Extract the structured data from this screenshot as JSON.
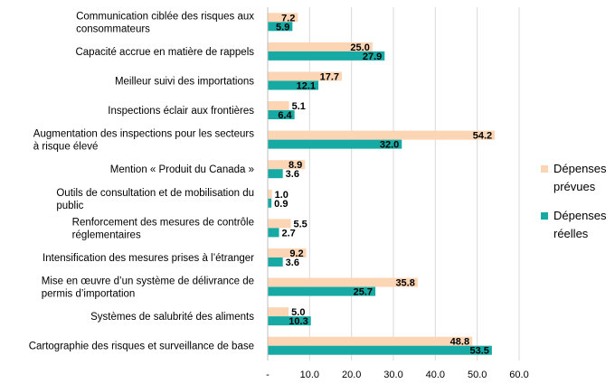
{
  "chart_data": {
    "type": "bar",
    "orientation": "horizontal",
    "title": "",
    "xlabel": "",
    "ylabel": "",
    "xlim": [
      0,
      60
    ],
    "ticks": [
      0,
      10,
      20,
      30,
      40,
      50,
      60
    ],
    "tick_labels": [
      "-",
      "10.0",
      "20.0",
      "30.0",
      "40.0",
      "50.0",
      "60.0"
    ],
    "grid": true,
    "legend_position": "right",
    "categories": [
      [
        "Communication ciblée des risques aux",
        "consommateurs"
      ],
      [
        "Capacité accrue en matière de rappels"
      ],
      [
        "Meilleur suivi des importations"
      ],
      [
        "Inspections éclair aux frontières"
      ],
      [
        "Augmentation des inspections pour les secteurs",
        "à risque élevé"
      ],
      [
        "Mention « Produit du Canada »"
      ],
      [
        "Outils de consultation et de mobilisation du",
        "public"
      ],
      [
        "Renforcement des mesures de contrôle",
        "réglementaires"
      ],
      [
        "Intensification des mesures prises à l’étranger"
      ],
      [
        "Mise en œuvre d’un système de délivrance de",
        "permis d’importation"
      ],
      [
        "Systèmes de salubrité des aliments"
      ],
      [
        "Cartographie des risques et surveillance de base"
      ]
    ],
    "series": [
      {
        "name": [
          "Dépenses",
          "prévues"
        ],
        "color": "#fcd5b5",
        "values": [
          7.2,
          25.0,
          17.7,
          5.1,
          54.2,
          8.9,
          1.0,
          5.5,
          9.2,
          35.8,
          5.0,
          48.8
        ],
        "labels": [
          "7.2",
          "25.0",
          "17.7",
          "5.1",
          "54.2",
          "8.9",
          "1.0",
          "5.5",
          "9.2",
          "35.8",
          "5.0",
          "48.8"
        ],
        "label_color": "#000000"
      },
      {
        "name": [
          "Dépenses",
          "réelles"
        ],
        "color": "#17aaa5",
        "values": [
          5.9,
          27.9,
          12.1,
          6.4,
          32.0,
          3.6,
          0.9,
          2.7,
          3.6,
          25.7,
          10.3,
          53.5
        ],
        "labels": [
          "5.9",
          "27.9",
          "12.1",
          "6.4",
          "32.0",
          "3.6",
          "0.9",
          "2.7",
          "3.6",
          "25.7",
          "10.3",
          "53.5"
        ],
        "label_color": "#ffffff"
      }
    ]
  }
}
